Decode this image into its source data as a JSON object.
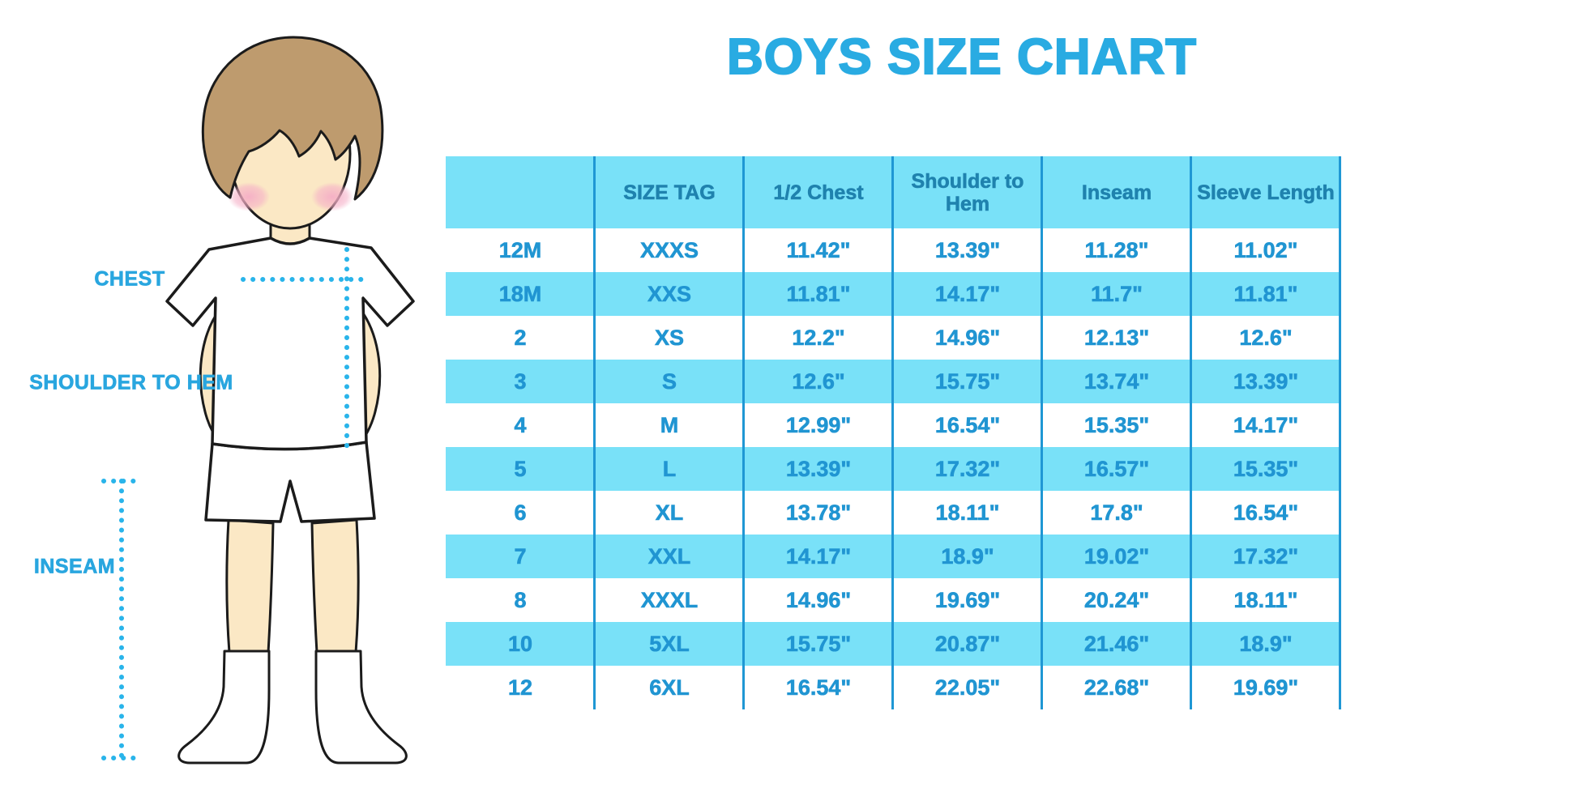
{
  "title": "BOYS SIZE CHART",
  "measurement_labels": {
    "chest": "CHEST",
    "shoulder_to_hem": "SHOULDER TO HEM",
    "inseam": "INSEAM"
  },
  "colors": {
    "title_blue": "#29ABE2",
    "label_blue": "#29A6DF",
    "header_text": "#1F82AE",
    "cell_text": "#2095D2",
    "stripe_cyan": "#79E1F8",
    "grid_line": "#1F97D4",
    "dotted_line": "#29B4EA",
    "skin": "#FBE8C5",
    "hair": "#BE9B6E",
    "blush": "#F5AEC6",
    "outline": "#1B1B1B"
  },
  "chart_data": {
    "type": "table",
    "title": "BOYS SIZE CHART",
    "columns": [
      "",
      "SIZE TAG",
      "1/2 Chest",
      "Shoulder to Hem",
      "Inseam",
      "Sleeve Length"
    ],
    "rows": [
      [
        "12M",
        "XXXS",
        "11.42\"",
        "13.39\"",
        "11.28\"",
        "11.02\""
      ],
      [
        "18M",
        "XXS",
        "11.81\"",
        "14.17\"",
        "11.7\"",
        "11.81\""
      ],
      [
        "2",
        "XS",
        "12.2\"",
        "14.96\"",
        "12.13\"",
        "12.6\""
      ],
      [
        "3",
        "S",
        "12.6\"",
        "15.75\"",
        "13.74\"",
        "13.39\""
      ],
      [
        "4",
        "M",
        "12.99\"",
        "16.54\"",
        "15.35\"",
        "14.17\""
      ],
      [
        "5",
        "L",
        "13.39\"",
        "17.32\"",
        "16.57\"",
        "15.35\""
      ],
      [
        "6",
        "XL",
        "13.78\"",
        "18.11\"",
        "17.8\"",
        "16.54\""
      ],
      [
        "7",
        "XXL",
        "14.17\"",
        "18.9\"",
        "19.02\"",
        "17.32\""
      ],
      [
        "8",
        "XXXL",
        "14.96\"",
        "19.69\"",
        "20.24\"",
        "18.11\""
      ],
      [
        "10",
        "5XL",
        "15.75\"",
        "20.87\"",
        "21.46\"",
        "18.9\""
      ],
      [
        "12",
        "6XL",
        "16.54\"",
        "22.05\"",
        "22.68\"",
        "19.69\""
      ]
    ],
    "layout": {
      "stripe_pattern": "header cyan, then rows alternate white/cyan starting white",
      "grid": "vertical separators only, extending through full table height"
    }
  }
}
